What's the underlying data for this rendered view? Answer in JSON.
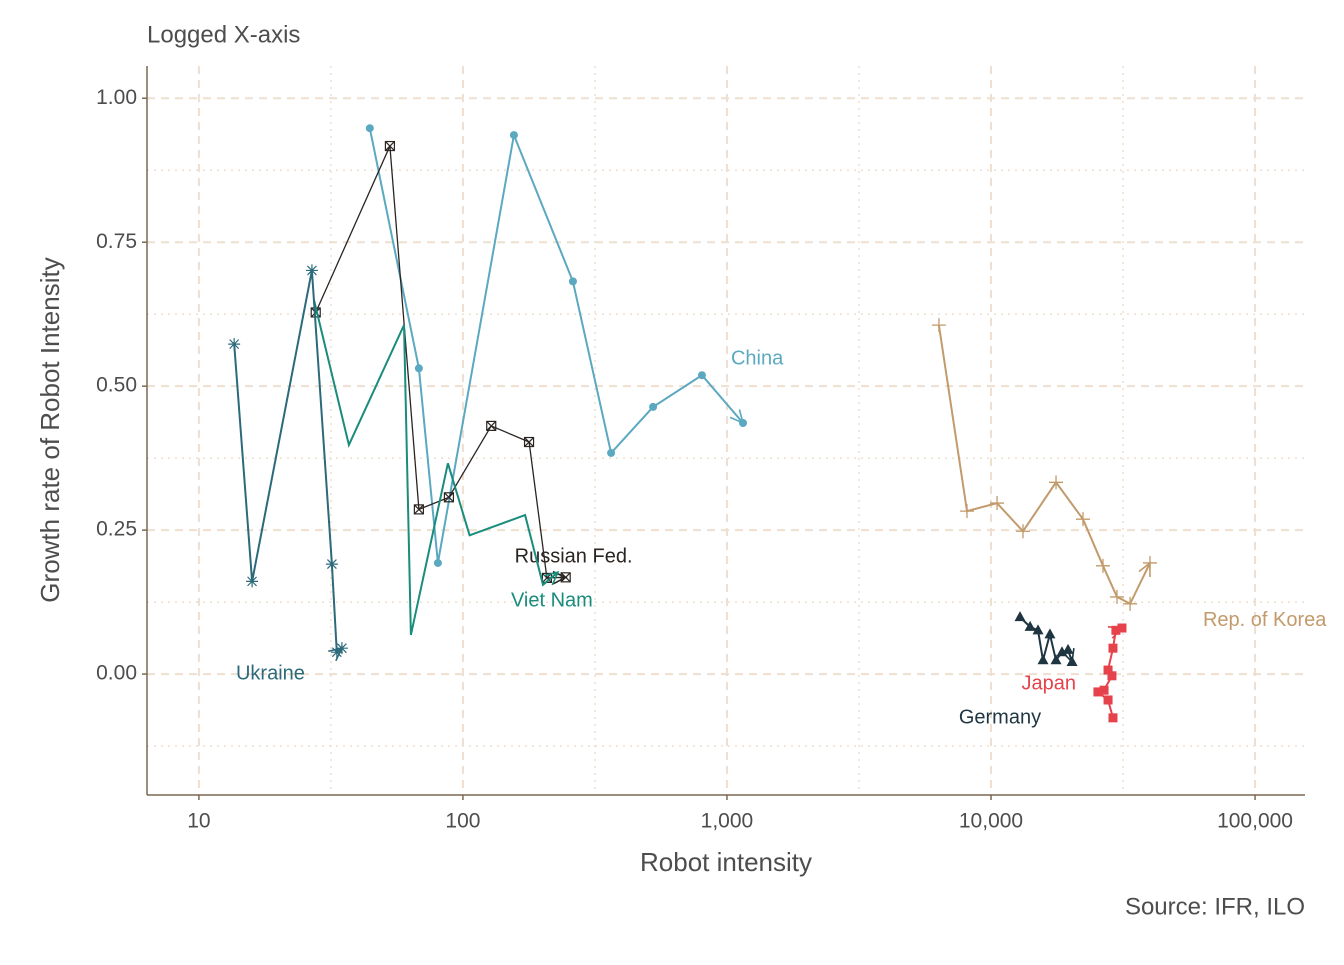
{
  "chart_data": {
    "type": "line",
    "title": "Logged X-axis",
    "x_label": "Robot intensity",
    "y_label": "Growth rate of Robot Intensity",
    "caption": "Source: IFR, ILO",
    "x_log": true,
    "grid": true,
    "xlim": [
      6.36,
      154600
    ],
    "ylim": [
      -0.21,
      1.056
    ],
    "xticks": [
      10,
      100,
      {
        "value": 1000,
        "label": "1,000"
      },
      {
        "value": 10000,
        "label": "10,000"
      },
      {
        "value": 100000,
        "label": "100,000"
      }
    ],
    "yticks": [
      {
        "value": 0,
        "label": "0.00"
      },
      {
        "value": 0.25,
        "label": "0.25"
      },
      {
        "value": 0.5,
        "label": "0.50"
      },
      {
        "value": 0.75,
        "label": "0.75"
      },
      {
        "value": 1,
        "label": "1.00"
      }
    ],
    "series": [
      {
        "name": "China",
        "color": "#5ba8c1",
        "marker": "circle",
        "x": [
          44.4,
          68.1,
          80.4,
          156,
          261,
          364,
          525,
          804,
          1150
        ],
        "values": [
          0.948,
          0.531,
          0.193,
          0.936,
          0.682,
          0.384,
          0.464,
          0.519,
          0.436
        ]
      },
      {
        "name": "Russian Fed.",
        "color": "#2b2522",
        "marker": "square-x",
        "x": [
          27.7,
          52.9,
          68.1,
          88.5,
          128,
          178,
          208,
          245
        ],
        "values": [
          0.628,
          0.917,
          0.286,
          0.307,
          0.431,
          0.403,
          0.167,
          0.168
        ]
      },
      {
        "name": "Viet Nam",
        "color": "#1a8c7c",
        "marker": "none",
        "x": [
          27.3,
          37.0,
          59.8,
          63.5,
          87.7,
          106,
          172,
          201,
          229
        ],
        "values": [
          0.649,
          0.398,
          0.606,
          0.068,
          0.366,
          0.241,
          0.276,
          0.155,
          0.177
        ]
      },
      {
        "name": "Ukraine",
        "color": "#2c6a7b",
        "marker": "star",
        "x": [
          13.6,
          15.9,
          26.8,
          31.9,
          33.3,
          34.8
        ],
        "values": [
          0.573,
          0.161,
          0.701,
          0.191,
          0.038,
          0.045
        ]
      },
      {
        "name": "Rep. of Korea",
        "color": "#c29a6b",
        "marker": "plus",
        "x": [
          6350,
          8110,
          10540,
          13220,
          17630,
          22300,
          26550,
          30000,
          33630,
          40000
        ],
        "values": [
          0.606,
          0.283,
          0.297,
          0.248,
          0.333,
          0.269,
          0.188,
          0.134,
          0.122,
          0.193
        ]
      },
      {
        "name": "Germany",
        "color": "#1f3542",
        "marker": "triangle",
        "x": [
          12880,
          14060,
          15070,
          15740,
          16720,
          17630,
          18570,
          19580,
          20280
        ],
        "values": [
          0.099,
          0.082,
          0.076,
          0.024,
          0.069,
          0.024,
          0.038,
          0.042,
          0.021
        ]
      },
      {
        "name": "Japan",
        "color": "#e5424b",
        "marker": "square",
        "x": [
          28970,
          27750,
          25410,
          26800,
          28710,
          27750,
          28970,
          29720,
          31330
        ],
        "values": [
          -0.076,
          -0.045,
          -0.031,
          -0.028,
          -0.003,
          0.007,
          0.045,
          0.076,
          0.08
        ]
      }
    ]
  }
}
